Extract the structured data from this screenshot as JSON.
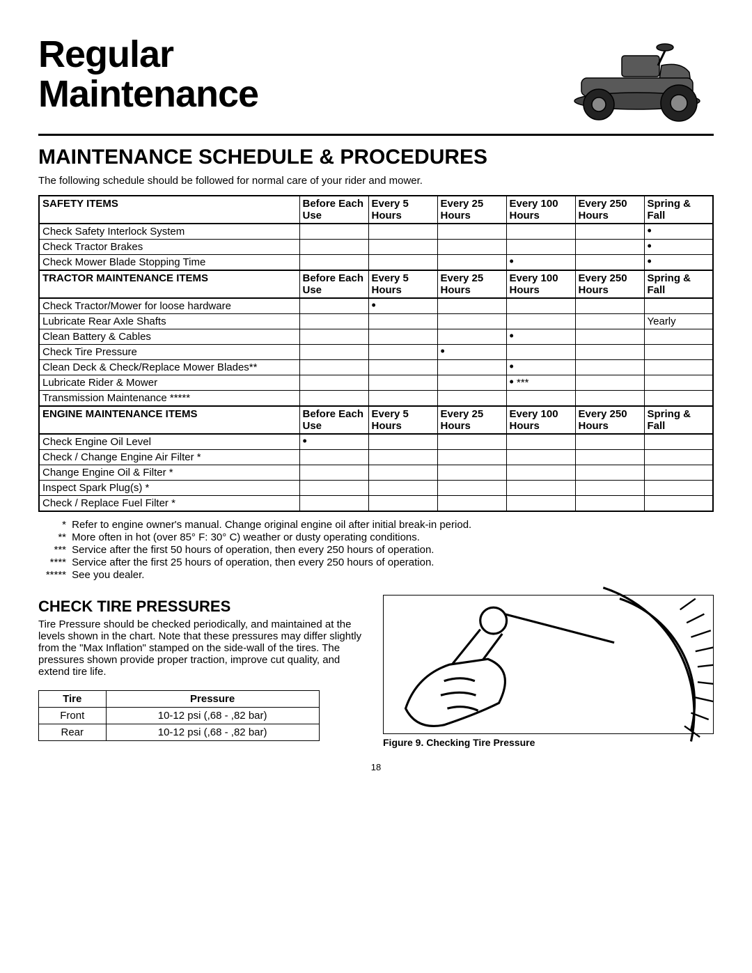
{
  "title_line1": "Regular",
  "title_line2": "Maintenance",
  "section_title": "MAINTENANCE SCHEDULE & PROCEDURES",
  "intro": "The following schedule should be followed for normal care of your rider and mower.",
  "interval_headers": [
    "Before Each Use",
    "Every 5 Hours",
    "Every 25 Hours",
    "Every 100 Hours",
    "Every 250 Hours",
    "Spring & Fall"
  ],
  "groups": [
    {
      "header": "SAFETY ITEMS",
      "rows": [
        {
          "label": "Check Safety Interlock System",
          "marks": [
            "",
            "",
            "",
            "",
            "",
            "•"
          ]
        },
        {
          "label": "Check Tractor Brakes",
          "marks": [
            "",
            "",
            "",
            "",
            "",
            "•"
          ]
        },
        {
          "label": "Check Mower Blade Stopping Time",
          "marks": [
            "",
            "",
            "",
            "•",
            "",
            "•"
          ]
        }
      ]
    },
    {
      "header": "TRACTOR MAINTENANCE ITEMS",
      "rows": [
        {
          "label": "Check Tractor/Mower for loose hardware",
          "marks": [
            "",
            "•",
            "",
            "",
            "",
            ""
          ]
        },
        {
          "label": "Lubricate Rear Axle Shafts",
          "marks": [
            "",
            "",
            "",
            "",
            "",
            "Yearly"
          ]
        },
        {
          "label": "Clean Battery & Cables",
          "marks": [
            "",
            "",
            "",
            "•",
            "",
            ""
          ]
        },
        {
          "label": "Check Tire Pressure",
          "marks": [
            "",
            "",
            "•",
            "",
            "",
            ""
          ]
        },
        {
          "label": "Clean Deck & Check/Replace Mower Blades**",
          "marks": [
            "",
            "",
            "",
            "•",
            "",
            ""
          ]
        },
        {
          "label": "Lubricate Rider & Mower",
          "marks": [
            "",
            "",
            "",
            "• ***",
            "",
            ""
          ]
        },
        {
          "label": "Transmission Maintenance *****",
          "marks": [
            "",
            "",
            "",
            "",
            "",
            ""
          ]
        }
      ]
    },
    {
      "header": "ENGINE MAINTENANCE ITEMS",
      "rows": [
        {
          "label": "Check Engine Oil Level",
          "marks": [
            "•",
            "",
            "",
            "",
            "",
            ""
          ]
        },
        {
          "label": "Check / Change Engine Air Filter *",
          "marks": [
            "",
            "",
            "",
            "",
            "",
            ""
          ]
        },
        {
          "label": "Change Engine Oil & Filter *",
          "marks": [
            "",
            "",
            "",
            "",
            "",
            ""
          ]
        },
        {
          "label": "Inspect Spark Plug(s) *",
          "marks": [
            "",
            "",
            "",
            "",
            "",
            ""
          ]
        },
        {
          "label": "Check / Replace Fuel Filter *",
          "marks": [
            "",
            "",
            "",
            "",
            "",
            ""
          ]
        }
      ]
    }
  ],
  "footnotes": [
    {
      "ast": "*",
      "text": "Refer to engine owner's manual.  Change original engine oil after initial break-in period."
    },
    {
      "ast": "**",
      "text": "More often in hot (over 85° F: 30° C) weather or dusty operating conditions."
    },
    {
      "ast": "***",
      "text": "Service after the first 50 hours of operation, then every 250 hours of operation."
    },
    {
      "ast": "****",
      "text": "Service after the first 25 hours of operation, then every 250 hours of operation."
    },
    {
      "ast": "*****",
      "text": "See you dealer."
    }
  ],
  "tire_section_title": "CHECK TIRE PRESSURES",
  "tire_text": "Tire Pressure should be checked periodically, and maintained at the levels shown in the chart. Note that these pressures may differ slightly from the \"Max Inflation\" stamped on the side-wall of the tires. The pressures shown provide proper traction, improve cut quality, and extend tire life.",
  "tire_table": {
    "headers": [
      "Tire",
      "Pressure"
    ],
    "rows": [
      [
        "Front",
        "10-12 psi (,68 - ,82 bar)"
      ],
      [
        "Rear",
        "10-12 psi (,68 - ,82 bar)"
      ]
    ]
  },
  "figure_caption": "Figure 9. Checking Tire Pressure",
  "page_number": "18"
}
